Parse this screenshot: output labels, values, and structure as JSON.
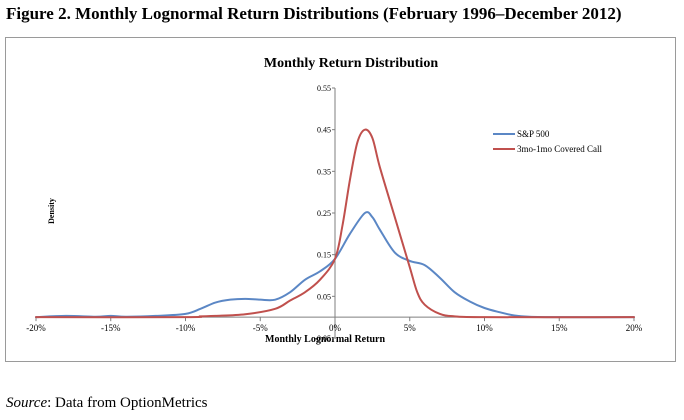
{
  "figure": {
    "title": "Figure 2. Monthly Lognormal Return Distributions (February 1996–December 2012)",
    "source_label": "Source",
    "source_text": ": Data from OptionMetrics"
  },
  "chart_data": {
    "type": "line",
    "title": "Monthly Return Distribution",
    "xlabel": "Monthly Lognormal Return",
    "ylabel": "Density",
    "xlim": [
      -0.2,
      0.2
    ],
    "ylim": [
      -0.05,
      0.55
    ],
    "x_ticks": [
      -0.2,
      -0.15,
      -0.1,
      -0.05,
      0,
      0.05,
      0.1,
      0.15,
      0.2
    ],
    "x_tick_labels": [
      "-20%",
      "-15%",
      "-10%",
      "-5%",
      "0%",
      "5%",
      "10%",
      "15%",
      "20%"
    ],
    "y_ticks": [
      0.55,
      0.45,
      0.35,
      0.25,
      0.15,
      0.05,
      -0.05
    ],
    "y_tick_labels": [
      "0.55",
      "0.45",
      "0.35",
      "0.25",
      "0.15",
      "0.05",
      "-0.05"
    ],
    "grid": false,
    "legend_position": "top-right",
    "series": [
      {
        "name": "S&P 500",
        "color": "#5b87c5",
        "points": [
          [
            -0.2,
            0.0
          ],
          [
            -0.18,
            0.003
          ],
          [
            -0.16,
            0.001
          ],
          [
            -0.15,
            0.003
          ],
          [
            -0.14,
            0.001
          ],
          [
            -0.12,
            0.003
          ],
          [
            -0.1,
            0.008
          ],
          [
            -0.09,
            0.02
          ],
          [
            -0.08,
            0.035
          ],
          [
            -0.07,
            0.042
          ],
          [
            -0.06,
            0.044
          ],
          [
            -0.05,
            0.042
          ],
          [
            -0.04,
            0.042
          ],
          [
            -0.03,
            0.06
          ],
          [
            -0.02,
            0.09
          ],
          [
            -0.01,
            0.11
          ],
          [
            0.0,
            0.14
          ],
          [
            0.01,
            0.2
          ],
          [
            0.02,
            0.25
          ],
          [
            0.025,
            0.24
          ],
          [
            0.03,
            0.21
          ],
          [
            0.04,
            0.155
          ],
          [
            0.05,
            0.135
          ],
          [
            0.06,
            0.125
          ],
          [
            0.07,
            0.095
          ],
          [
            0.08,
            0.06
          ],
          [
            0.09,
            0.038
          ],
          [
            0.1,
            0.022
          ],
          [
            0.11,
            0.012
          ],
          [
            0.12,
            0.004
          ],
          [
            0.13,
            0.001
          ],
          [
            0.15,
            0.0
          ],
          [
            0.2,
            0.0
          ]
        ]
      },
      {
        "name": "3mo-1mo Covered Call",
        "color": "#c0504d",
        "points": [
          [
            -0.2,
            0.0
          ],
          [
            -0.1,
            0.0
          ],
          [
            -0.09,
            0.002
          ],
          [
            -0.08,
            0.003
          ],
          [
            -0.06,
            0.007
          ],
          [
            -0.04,
            0.02
          ],
          [
            -0.03,
            0.04
          ],
          [
            -0.02,
            0.06
          ],
          [
            -0.01,
            0.09
          ],
          [
            0.0,
            0.14
          ],
          [
            0.005,
            0.22
          ],
          [
            0.01,
            0.33
          ],
          [
            0.015,
            0.42
          ],
          [
            0.02,
            0.45
          ],
          [
            0.025,
            0.43
          ],
          [
            0.03,
            0.36
          ],
          [
            0.04,
            0.24
          ],
          [
            0.05,
            0.12
          ],
          [
            0.055,
            0.06
          ],
          [
            0.06,
            0.03
          ],
          [
            0.07,
            0.008
          ],
          [
            0.08,
            0.002
          ],
          [
            0.1,
            0.0
          ],
          [
            0.2,
            0.0
          ]
        ]
      }
    ]
  }
}
